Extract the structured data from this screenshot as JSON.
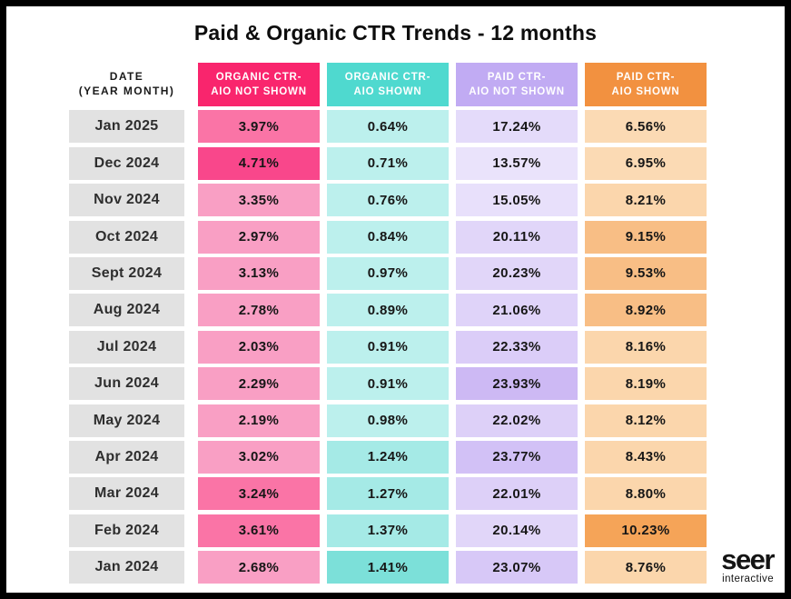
{
  "title": "Paid & Organic CTR Trends - 12 months",
  "date_header": {
    "line1": "DATE",
    "line2": "(YEAR MONTH)"
  },
  "logo": {
    "main": "seer",
    "sub": "interactive"
  },
  "colors": {
    "frame_border": "#000000",
    "date_label_bg": "#E2E2E2",
    "header_organic_not_shown": "#F9256D",
    "header_organic_shown": "#4FD9CF",
    "header_paid_not_shown": "#C1ABF3",
    "header_paid_shown": "#F29140"
  },
  "chart_data": {
    "type": "table",
    "title": "Paid & Organic CTR Trends - 12 months",
    "date_label_bg": "#E2E2E2",
    "columns": [
      {
        "id": "organic-ctr-aio-not-shown",
        "line1": "ORGANIC CTR-",
        "line2": "AIO NOT SHOWN",
        "header_bg": "#F9256D",
        "header_text": "#FFFFFF"
      },
      {
        "id": "organic-ctr-aio-shown",
        "line1": "ORGANIC CTR-",
        "line2": "AIO SHOWN",
        "header_bg": "#4FD9CF",
        "header_text": "#FFFFFF"
      },
      {
        "id": "paid-ctr-aio-not-shown",
        "line1": "PAID CTR-",
        "line2": "AIO NOT SHOWN",
        "header_bg": "#C1ABF3",
        "header_text": "#FFFFFF"
      },
      {
        "id": "paid-ctr-aio-shown",
        "line1": "PAID CTR-",
        "line2": "AIO SHOWN",
        "header_bg": "#F29140",
        "header_text": "#FFFFFF"
      }
    ],
    "rows": [
      {
        "date": "Jan 2025",
        "values": [
          "3.97%",
          "0.64%",
          "17.24%",
          "6.56%"
        ],
        "cell_bg": [
          "#FA74A6",
          "#BCF0ED",
          "#E4DBFA",
          "#FBDAB4"
        ]
      },
      {
        "date": "Dec 2024",
        "values": [
          "4.71%",
          "0.71%",
          "13.57%",
          "6.95%"
        ],
        "cell_bg": [
          "#F9478B",
          "#BCF0ED",
          "#EAE3FB",
          "#FBDAB4"
        ]
      },
      {
        "date": "Nov 2024",
        "values": [
          "3.35%",
          "0.76%",
          "15.05%",
          "8.21%"
        ],
        "cell_bg": [
          "#F99FC4",
          "#BCF0ED",
          "#E8E0FB",
          "#FBD6AC"
        ]
      },
      {
        "date": "Oct 2024",
        "values": [
          "2.97%",
          "0.84%",
          "20.11%",
          "9.15%"
        ],
        "cell_bg": [
          "#F99FC4",
          "#BCF0ED",
          "#E1D6F9",
          "#F8BE85"
        ]
      },
      {
        "date": "Sept 2024",
        "values": [
          "3.13%",
          "0.97%",
          "20.23%",
          "9.53%"
        ],
        "cell_bg": [
          "#F99FC4",
          "#BCF0ED",
          "#E1D6F9",
          "#F8BE85"
        ]
      },
      {
        "date": "Aug 2024",
        "values": [
          "2.78%",
          "0.89%",
          "21.06%",
          "8.92%"
        ],
        "cell_bg": [
          "#F99FC4",
          "#BCF0ED",
          "#DFD3F9",
          "#F8BE85"
        ]
      },
      {
        "date": "Jul 2024",
        "values": [
          "2.03%",
          "0.91%",
          "22.33%",
          "8.16%"
        ],
        "cell_bg": [
          "#F99FC4",
          "#BCF0ED",
          "#DBCDF8",
          "#FBD6AC"
        ]
      },
      {
        "date": "Jun 2024",
        "values": [
          "2.29%",
          "0.91%",
          "23.93%",
          "8.19%"
        ],
        "cell_bg": [
          "#F99FC4",
          "#BCF0ED",
          "#CDB9F4",
          "#FBD6AC"
        ]
      },
      {
        "date": "May 2024",
        "values": [
          "2.19%",
          "0.98%",
          "22.02%",
          "8.12%"
        ],
        "cell_bg": [
          "#F99FC4",
          "#BCF0ED",
          "#DDD0F8",
          "#FBD6AC"
        ]
      },
      {
        "date": "Apr 2024",
        "values": [
          "3.02%",
          "1.24%",
          "23.77%",
          "8.43%"
        ],
        "cell_bg": [
          "#F99FC4",
          "#A5EAE6",
          "#D2C1F6",
          "#FBD6AC"
        ]
      },
      {
        "date": "Mar 2024",
        "values": [
          "3.24%",
          "1.27%",
          "22.01%",
          "8.80%"
        ],
        "cell_bg": [
          "#FA74A6",
          "#A5EAE6",
          "#DDD0F8",
          "#FBD6AC"
        ]
      },
      {
        "date": "Feb 2024",
        "values": [
          "3.61%",
          "1.37%",
          "20.14%",
          "10.23%"
        ],
        "cell_bg": [
          "#FA74A6",
          "#A5EAE6",
          "#E1D6F9",
          "#F5A458"
        ]
      },
      {
        "date": "Jan 2024",
        "values": [
          "2.68%",
          "1.41%",
          "23.07%",
          "8.76%"
        ],
        "cell_bg": [
          "#F99FC4",
          "#7CE0D9",
          "#D7C8F7",
          "#FBD6AC"
        ]
      }
    ]
  }
}
